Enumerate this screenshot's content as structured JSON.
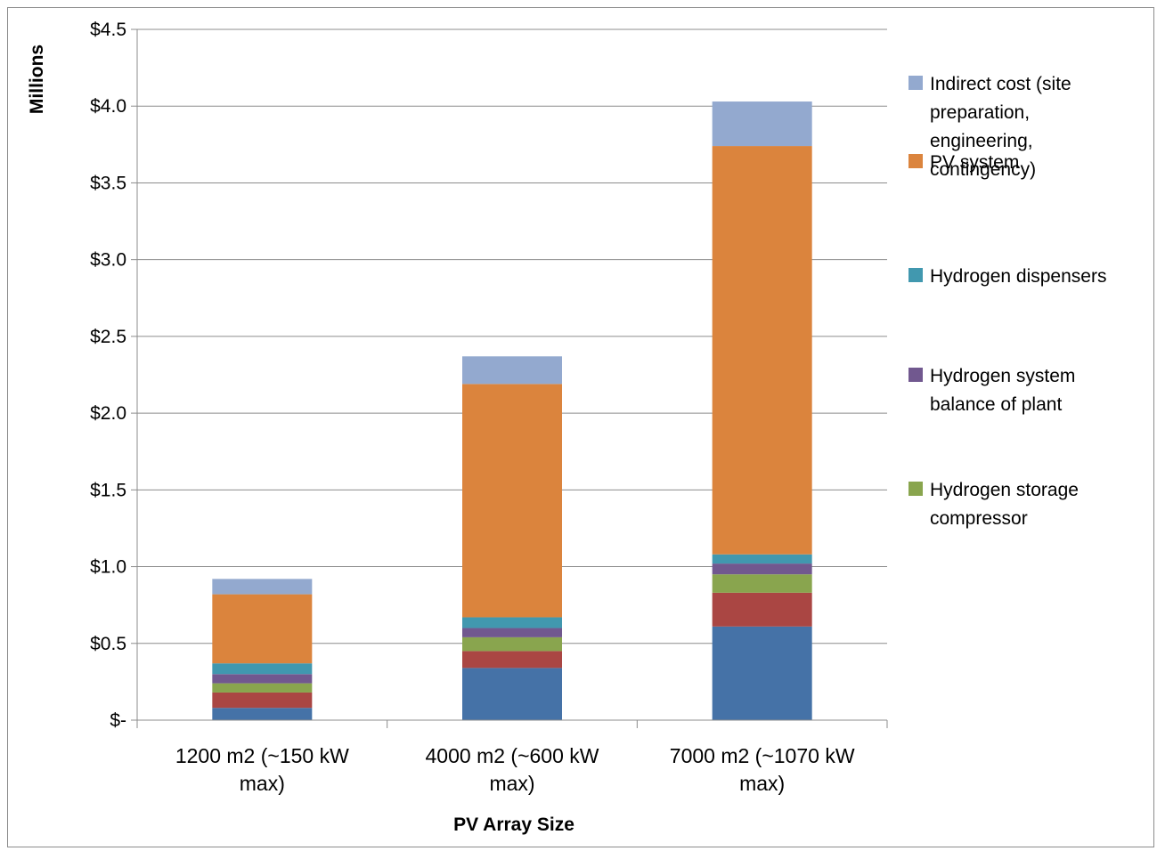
{
  "chart_data": {
    "type": "bar",
    "stacked": true,
    "xlabel": "PV Array Size",
    "ylabel": "Millions",
    "ylim": [
      0,
      4.5
    ],
    "yticks": [
      0,
      0.5,
      1.0,
      1.5,
      2.0,
      2.5,
      3.0,
      3.5,
      4.0,
      4.5
    ],
    "ytick_labels": [
      "$-",
      "$0.5",
      "$1.0",
      "$1.5",
      "$2.0",
      "$2.5",
      "$3.0",
      "$3.5",
      "$4.0",
      "$4.5"
    ],
    "grid": "horizontal",
    "legend_position": "right",
    "categories": [
      [
        "1200 m2 (~150 kW",
        "max)"
      ],
      [
        "4000 m2 (~600 kW",
        "max)"
      ],
      [
        "7000 m2 (~1070 kW",
        "max)"
      ]
    ],
    "series": [
      {
        "legend_lines": [],
        "color": "#4572A7",
        "values": [
          0.08,
          0.34,
          0.61
        ]
      },
      {
        "legend_lines": [],
        "color": "#AA4643",
        "values": [
          0.1,
          0.11,
          0.22
        ]
      },
      {
        "legend_lines": [
          "Hydrogen storage",
          "compressor"
        ],
        "color": "#89A54E",
        "values": [
          0.06,
          0.09,
          0.12
        ]
      },
      {
        "legend_lines": [
          "Hydrogen system",
          "balance of plant"
        ],
        "color": "#71588F",
        "values": [
          0.06,
          0.06,
          0.07
        ]
      },
      {
        "legend_lines": [
          "Hydrogen dispensers"
        ],
        "color": "#4198AF",
        "values": [
          0.07,
          0.07,
          0.06
        ]
      },
      {
        "legend_lines": [
          "PV system"
        ],
        "color": "#DB843D",
        "values": [
          0.45,
          1.52,
          2.66
        ]
      },
      {
        "legend_lines": [
          "Indirect cost (site",
          "preparation,",
          "engineering,",
          "contingency)"
        ],
        "color": "#93A9CF",
        "values": [
          0.1,
          0.18,
          0.29
        ]
      }
    ]
  }
}
